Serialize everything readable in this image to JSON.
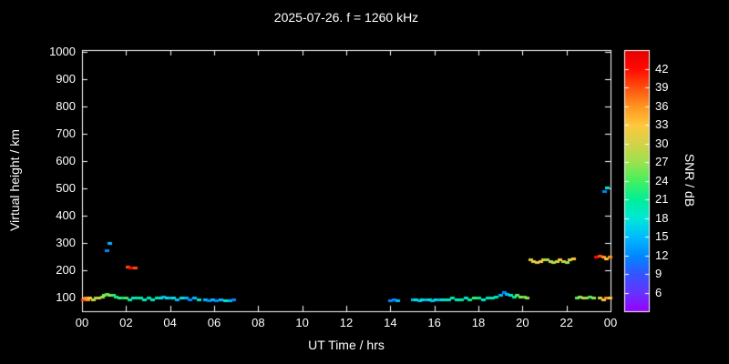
{
  "chart_data": {
    "type": "scatter",
    "title": "2025-07-26. f = 1260 kHz",
    "xlabel": "UT Time / hrs",
    "ylabel": "Virtual height / km",
    "colorbar_label": "SNR / dB",
    "xlim": [
      0,
      24
    ],
    "ylim_km": [
      50,
      1007
    ],
    "grid": false,
    "background": "#000000",
    "axis_color": "#ffffff",
    "x_ticks": [
      {
        "v": 0,
        "label": "00"
      },
      {
        "v": 2,
        "label": "02"
      },
      {
        "v": 4,
        "label": "04"
      },
      {
        "v": 6,
        "label": "06"
      },
      {
        "v": 8,
        "label": "08"
      },
      {
        "v": 10,
        "label": "10"
      },
      {
        "v": 12,
        "label": "12"
      },
      {
        "v": 14,
        "label": "14"
      },
      {
        "v": 16,
        "label": "16"
      },
      {
        "v": 18,
        "label": "18"
      },
      {
        "v": 20,
        "label": "20"
      },
      {
        "v": 22,
        "label": "22"
      },
      {
        "v": 24,
        "label": "00"
      }
    ],
    "y_ticks": [
      100,
      200,
      300,
      400,
      500,
      600,
      700,
      800,
      900,
      1000
    ],
    "colorbar": {
      "range": [
        3,
        45
      ],
      "ticks": [
        6,
        9,
        12,
        15,
        18,
        21,
        24,
        27,
        30,
        33,
        36,
        39,
        42
      ],
      "stops": [
        [
          3,
          "#9900ff"
        ],
        [
          6,
          "#6633ff"
        ],
        [
          9,
          "#3355ff"
        ],
        [
          12,
          "#0088ff"
        ],
        [
          15,
          "#00bbff"
        ],
        [
          18,
          "#00e8d8"
        ],
        [
          21,
          "#00ee99"
        ],
        [
          24,
          "#44f060"
        ],
        [
          27,
          "#9ae24e"
        ],
        [
          30,
          "#d3d348"
        ],
        [
          33,
          "#ffc83c"
        ],
        [
          36,
          "#ff9420"
        ],
        [
          39,
          "#ff500e"
        ],
        [
          42,
          "#ff0a00"
        ],
        [
          45,
          "#e60000"
        ]
      ]
    },
    "points_format": [
      "ut_hour",
      "virtual_height_km",
      "snr_db"
    ],
    "points": [
      [
        0.05,
        95,
        39
      ],
      [
        0.15,
        100,
        36
      ],
      [
        0.25,
        95,
        36
      ],
      [
        0.35,
        100,
        33
      ],
      [
        0.5,
        95,
        30
      ],
      [
        0.6,
        100,
        27
      ],
      [
        0.75,
        100,
        30
      ],
      [
        0.9,
        105,
        27
      ],
      [
        1.0,
        110,
        27
      ],
      [
        1.1,
        115,
        24
      ],
      [
        1.25,
        110,
        27
      ],
      [
        1.4,
        110,
        24
      ],
      [
        1.55,
        105,
        21
      ],
      [
        1.1,
        275,
        12
      ],
      [
        1.25,
        300,
        15
      ],
      [
        1.7,
        100,
        24
      ],
      [
        1.85,
        100,
        21
      ],
      [
        2.0,
        100,
        24
      ],
      [
        2.15,
        95,
        21
      ],
      [
        2.3,
        100,
        18
      ],
      [
        2.5,
        100,
        21
      ],
      [
        2.05,
        215,
        39
      ],
      [
        2.2,
        210,
        42
      ],
      [
        2.4,
        210,
        39
      ],
      [
        2.65,
        100,
        21
      ],
      [
        2.8,
        95,
        18
      ],
      [
        3.0,
        100,
        21
      ],
      [
        3.2,
        95,
        18
      ],
      [
        3.4,
        100,
        21
      ],
      [
        3.55,
        100,
        18
      ],
      [
        3.7,
        105,
        15
      ],
      [
        3.85,
        100,
        18
      ],
      [
        4.0,
        100,
        15
      ],
      [
        4.15,
        100,
        18
      ],
      [
        4.3,
        95,
        15
      ],
      [
        4.5,
        100,
        18
      ],
      [
        4.7,
        100,
        15
      ],
      [
        4.9,
        95,
        12
      ],
      [
        5.1,
        100,
        15
      ],
      [
        5.3,
        95,
        18
      ],
      [
        5.6,
        95,
        15
      ],
      [
        5.75,
        90,
        12
      ],
      [
        5.9,
        95,
        15
      ],
      [
        6.1,
        90,
        12
      ],
      [
        6.3,
        95,
        15
      ],
      [
        6.5,
        90,
        18
      ],
      [
        6.7,
        90,
        15
      ],
      [
        6.85,
        95,
        12
      ],
      [
        14.0,
        90,
        12
      ],
      [
        14.15,
        95,
        12
      ],
      [
        14.3,
        90,
        15
      ],
      [
        15.0,
        95,
        15
      ],
      [
        15.15,
        95,
        18
      ],
      [
        15.3,
        90,
        15
      ],
      [
        15.45,
        95,
        18
      ],
      [
        15.6,
        95,
        15
      ],
      [
        15.75,
        95,
        18
      ],
      [
        15.9,
        90,
        15
      ],
      [
        16.05,
        95,
        18
      ],
      [
        16.2,
        95,
        15
      ],
      [
        16.35,
        95,
        18
      ],
      [
        16.5,
        95,
        21
      ],
      [
        16.65,
        95,
        18
      ],
      [
        16.8,
        100,
        21
      ],
      [
        17.0,
        95,
        18
      ],
      [
        17.2,
        95,
        21
      ],
      [
        17.4,
        100,
        18
      ],
      [
        17.6,
        95,
        21
      ],
      [
        17.8,
        100,
        24
      ],
      [
        18.0,
        100,
        21
      ],
      [
        18.2,
        95,
        18
      ],
      [
        18.4,
        100,
        21
      ],
      [
        18.6,
        100,
        18
      ],
      [
        18.8,
        105,
        21
      ],
      [
        19.0,
        110,
        15
      ],
      [
        19.15,
        120,
        12
      ],
      [
        19.3,
        115,
        15
      ],
      [
        19.45,
        110,
        18
      ],
      [
        19.6,
        105,
        21
      ],
      [
        19.75,
        110,
        24
      ],
      [
        19.9,
        105,
        27
      ],
      [
        20.05,
        105,
        24
      ],
      [
        20.2,
        100,
        27
      ],
      [
        20.35,
        240,
        30
      ],
      [
        20.5,
        235,
        33
      ],
      [
        20.65,
        230,
        30
      ],
      [
        20.8,
        235,
        33
      ],
      [
        20.95,
        240,
        30
      ],
      [
        21.1,
        240,
        27
      ],
      [
        21.25,
        235,
        30
      ],
      [
        21.4,
        230,
        27
      ],
      [
        21.55,
        235,
        30
      ],
      [
        21.7,
        240,
        33
      ],
      [
        21.85,
        235,
        30
      ],
      [
        22.0,
        230,
        27
      ],
      [
        22.15,
        240,
        30
      ],
      [
        22.3,
        245,
        33
      ],
      [
        22.45,
        100,
        24
      ],
      [
        22.6,
        105,
        27
      ],
      [
        22.75,
        100,
        30
      ],
      [
        22.9,
        100,
        27
      ],
      [
        23.05,
        105,
        24
      ],
      [
        23.2,
        100,
        27
      ],
      [
        23.35,
        250,
        42
      ],
      [
        23.5,
        255,
        39
      ],
      [
        23.65,
        250,
        36
      ],
      [
        23.8,
        245,
        33
      ],
      [
        23.95,
        250,
        36
      ],
      [
        23.7,
        490,
        12
      ],
      [
        23.85,
        505,
        18
      ],
      [
        23.5,
        100,
        30
      ],
      [
        23.65,
        95,
        33
      ],
      [
        23.8,
        100,
        36
      ],
      [
        23.95,
        100,
        33
      ]
    ]
  }
}
